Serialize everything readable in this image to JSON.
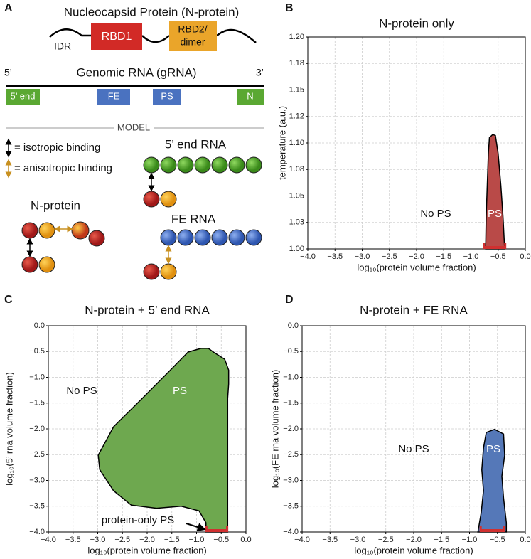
{
  "panel_labels": [
    "A",
    "B",
    "C",
    "D"
  ],
  "diagram": {
    "protein_title": "Nucleocapsid Protein (N-protein)",
    "idr": "IDR",
    "rbd1": "RBD1",
    "rbd2": [
      "RBD2/",
      "dimer"
    ],
    "rna_title": "Genomic RNA (gRNA)",
    "five_prime": "5’",
    "three_prime": "3’",
    "segments": [
      "5’ end",
      "FE",
      "PS",
      "N"
    ],
    "model": "MODEL",
    "legend": [
      "= isotropic binding",
      "= anisotropic binding"
    ],
    "five_end_rna": "5’ end RNA",
    "n_protein": "N-protein",
    "fe_rna": "FE RNA"
  },
  "chart_data": [
    {
      "type": "area",
      "title": "N-protein only",
      "xlabel": "log₁₀(protein volume fraction)",
      "ylabel": "temperature (a.u.)",
      "color": "#b94a48",
      "x": [
        -0.73,
        -0.72,
        -0.7,
        -0.68,
        -0.66,
        -0.6,
        -0.55,
        -0.5,
        -0.45,
        -0.41,
        -0.38
      ],
      "values": [
        1.0,
        1.03,
        1.06,
        1.09,
        1.105,
        1.108,
        1.107,
        1.09,
        1.06,
        1.03,
        1.0
      ],
      "range": [
        -0.76,
        -0.37
      ],
      "range_color": "#d03030",
      "annotations": [
        "No PS",
        "PS"
      ],
      "xlim": [
        -4,
        0
      ],
      "ylim": [
        1.0,
        1.2
      ],
      "xticks": [
        {
          "value": -4,
          "label": "−4.0"
        },
        {
          "value": -3.5,
          "label": "−3.5"
        },
        {
          "value": -3,
          "label": "−3.0"
        },
        {
          "value": -2.5,
          "label": "−2.5"
        },
        {
          "value": -2,
          "label": "−2.0"
        },
        {
          "value": -1.5,
          "label": "−1.5"
        },
        {
          "value": -1,
          "label": "−1.0"
        },
        {
          "value": -0.5,
          "label": "−0.5"
        },
        {
          "value": 0,
          "label": "0.0"
        }
      ],
      "yticks": [
        {
          "value": 1.0,
          "label": "1.00"
        },
        {
          "value": 1.025,
          "label": "1.03"
        },
        {
          "value": 1.05,
          "label": "1.05"
        },
        {
          "value": 1.075,
          "label": "1.08"
        },
        {
          "value": 1.1,
          "label": "1.10"
        },
        {
          "value": 1.125,
          "label": "1.12"
        },
        {
          "value": 1.15,
          "label": "1.15"
        },
        {
          "value": 1.175,
          "label": "1.18"
        },
        {
          "value": 1.2,
          "label": "1.20"
        }
      ],
      "grid": true
    },
    {
      "type": "area",
      "title": "N-protein + 5’ end RNA",
      "xlabel": "log₁₀(protein volume fraction)",
      "ylabel": "log₁₀(5’ rna volume fraction)",
      "color": "#6ea84f",
      "x": [
        -0.37,
        -0.37,
        -0.35,
        -0.35,
        -0.43,
        -0.66,
        -0.76,
        -0.91,
        -1.17,
        -1.53,
        -2.1,
        -2.68,
        -2.99,
        -2.96,
        -2.68,
        -2.32,
        -1.81,
        -1.31,
        -0.95,
        -0.81,
        -0.81
      ],
      "values": [
        -4.0,
        -1.41,
        -1.13,
        -0.86,
        -0.65,
        -0.51,
        -0.44,
        -0.44,
        -0.51,
        -0.86,
        -1.41,
        -1.96,
        -2.51,
        -2.79,
        -3.2,
        -3.48,
        -3.54,
        -3.5,
        -3.59,
        -3.82,
        -4.0
      ],
      "range": [
        -0.8,
        -0.38
      ],
      "range_color": "#d03030",
      "annotations": [
        "No PS",
        "PS",
        "protein-only PS"
      ],
      "xlim": [
        -4,
        0
      ],
      "ylim": [
        -4,
        0
      ],
      "xticks": [
        {
          "value": -4,
          "label": "−4.0"
        },
        {
          "value": -3.5,
          "label": "−3.5"
        },
        {
          "value": -3,
          "label": "−3.0"
        },
        {
          "value": -2.5,
          "label": "−2.5"
        },
        {
          "value": -2,
          "label": "−2.0"
        },
        {
          "value": -1.5,
          "label": "−1.5"
        },
        {
          "value": -1,
          "label": "−1.0"
        },
        {
          "value": -0.5,
          "label": "−0.5"
        },
        {
          "value": 0,
          "label": "0.0"
        }
      ],
      "yticks": [
        {
          "value": -4,
          "label": "−4.0"
        },
        {
          "value": -3.5,
          "label": "−3.5"
        },
        {
          "value": -3,
          "label": "−3.0"
        },
        {
          "value": -2.5,
          "label": "−2.5"
        },
        {
          "value": -2,
          "label": "−2.0"
        },
        {
          "value": -1.5,
          "label": "−1.5"
        },
        {
          "value": -1,
          "label": "−1.0"
        },
        {
          "value": -0.5,
          "label": "−0.5"
        },
        {
          "value": 0,
          "label": "0.0"
        }
      ],
      "grid": true
    },
    {
      "type": "area",
      "title": "N-protein + FE RNA",
      "xlabel": "log₁₀(protein volume fraction)",
      "ylabel": "log₁₀(FE rna volume fraction)",
      "color": "#5578b8",
      "x": [
        -0.85,
        -0.79,
        -0.75,
        -0.78,
        -0.75,
        -0.7,
        -0.55,
        -0.39,
        -0.37,
        -0.42,
        -0.39,
        -0.34,
        -0.34
      ],
      "values": [
        -4.0,
        -3.62,
        -3.2,
        -2.79,
        -2.37,
        -2.07,
        -2.01,
        -2.1,
        -2.51,
        -2.92,
        -3.34,
        -3.82,
        -4.0
      ],
      "range": [
        -0.8,
        -0.38
      ],
      "range_color": "#d03030",
      "annotations": [
        "No PS",
        "PS"
      ],
      "xlim": [
        -4,
        0
      ],
      "ylim": [
        -4,
        0
      ],
      "xticks": [
        {
          "value": -4,
          "label": "−4.0"
        },
        {
          "value": -3.5,
          "label": "−3.5"
        },
        {
          "value": -3,
          "label": "−3.0"
        },
        {
          "value": -2.5,
          "label": "−2.5"
        },
        {
          "value": -2,
          "label": "−2.0"
        },
        {
          "value": -1.5,
          "label": "−1.5"
        },
        {
          "value": -1,
          "label": "−1.0"
        },
        {
          "value": -0.5,
          "label": "−0.5"
        },
        {
          "value": 0,
          "label": "0.0"
        }
      ],
      "yticks": [
        {
          "value": -4,
          "label": "−4.0"
        },
        {
          "value": -3.5,
          "label": "−3.5"
        },
        {
          "value": -3,
          "label": "−3.0"
        },
        {
          "value": -2.5,
          "label": "−2.5"
        },
        {
          "value": -2,
          "label": "−2.0"
        },
        {
          "value": -1.5,
          "label": "−1.5"
        },
        {
          "value": -1,
          "label": "−1.0"
        },
        {
          "value": -0.5,
          "label": "−0.5"
        },
        {
          "value": 0,
          "label": "0.0"
        }
      ],
      "grid": true
    }
  ]
}
